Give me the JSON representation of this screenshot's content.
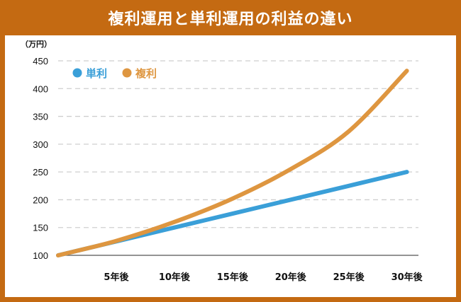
{
  "title": "複利運用と単利運用の利益の違い",
  "colors": {
    "frame": "#c46a12",
    "simple": "#3a9fd8",
    "compound": "#de9640",
    "grid": "#cfcfcf"
  },
  "chart_data": {
    "type": "line",
    "unit_label": "（万円）",
    "ylim": [
      100,
      450
    ],
    "yticks": [
      100,
      150,
      200,
      250,
      300,
      350,
      400,
      450
    ],
    "xlim": [
      0,
      31
    ],
    "categories": [
      "5年後",
      "10年後",
      "15年後",
      "20年後",
      "25年後",
      "30年後"
    ],
    "category_x": [
      5,
      10,
      15,
      20,
      25,
      30
    ],
    "grid": true,
    "legend_position": "top-left",
    "series": [
      {
        "name": "単利",
        "color": "#3a9fd8",
        "x": [
          0,
          5,
          10,
          15,
          20,
          25,
          30
        ],
        "values": [
          100,
          125,
          150,
          175,
          200,
          225,
          250
        ]
      },
      {
        "name": "複利",
        "color": "#de9640",
        "x": [
          0,
          5,
          10,
          15,
          20,
          25,
          30
        ],
        "values": [
          100,
          126,
          160,
          202,
          255,
          323,
          432
        ]
      }
    ]
  }
}
